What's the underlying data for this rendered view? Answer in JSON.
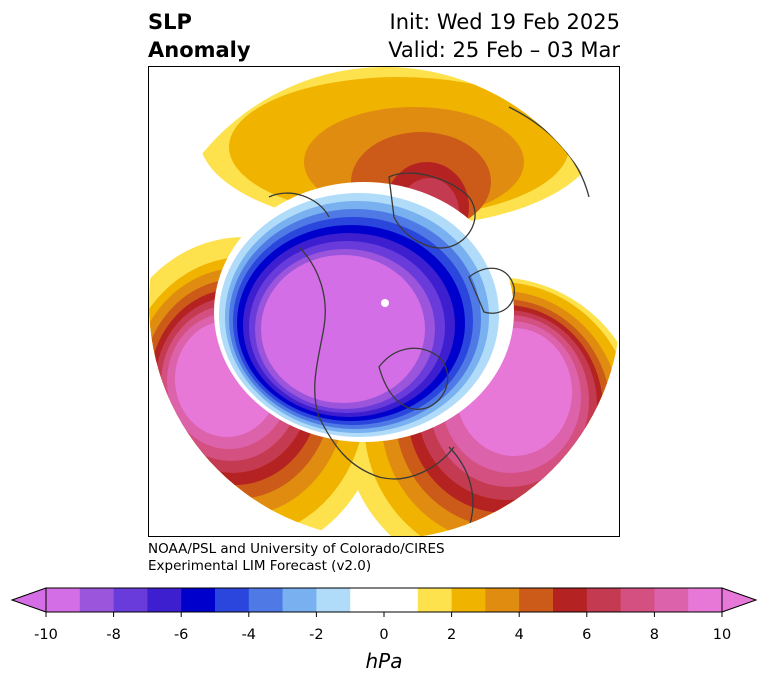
{
  "title": {
    "left_line1": "SLP",
    "left_line2": "Anomaly",
    "right_line1": "Init: Wed 19 Feb 2025",
    "right_line2": "Valid: 25 Feb – 03 Mar"
  },
  "credit": {
    "line1": "NOAA/PSL and University of Colorado/CIRES",
    "line2": "Experimental LIM Forecast (v2.0)"
  },
  "colorbar": {
    "unit": "hPa",
    "ticks": [
      "-10",
      "-8",
      "-6",
      "-4",
      "-2",
      "0",
      "2",
      "4",
      "6",
      "8",
      "10"
    ],
    "colors": [
      "#d46ee6",
      "#9b55dc",
      "#6a3bdb",
      "#3d1fcf",
      "#0000cd",
      "#2a46dc",
      "#4f7ae6",
      "#78b0f0",
      "#b0dcfa",
      "#ffffff",
      "#ffffff",
      "#fde24e",
      "#f0b400",
      "#e08c10",
      "#cc5a18",
      "#b42222",
      "#c43a50",
      "#d45080",
      "#dc62ac",
      "#e878d8"
    ],
    "low_end_color": "#d46ee6",
    "high_end_color": "#e878d8"
  },
  "map": {
    "projection": "polar-stereographic",
    "features": [
      {
        "name": "positive-anomaly-north-pacific",
        "sign": "positive"
      },
      {
        "name": "positive-anomaly-north-atlantic",
        "sign": "positive"
      },
      {
        "name": "positive-anomaly-siberia",
        "sign": "positive"
      },
      {
        "name": "negative-anomaly-arctic-canada",
        "sign": "negative"
      }
    ]
  }
}
